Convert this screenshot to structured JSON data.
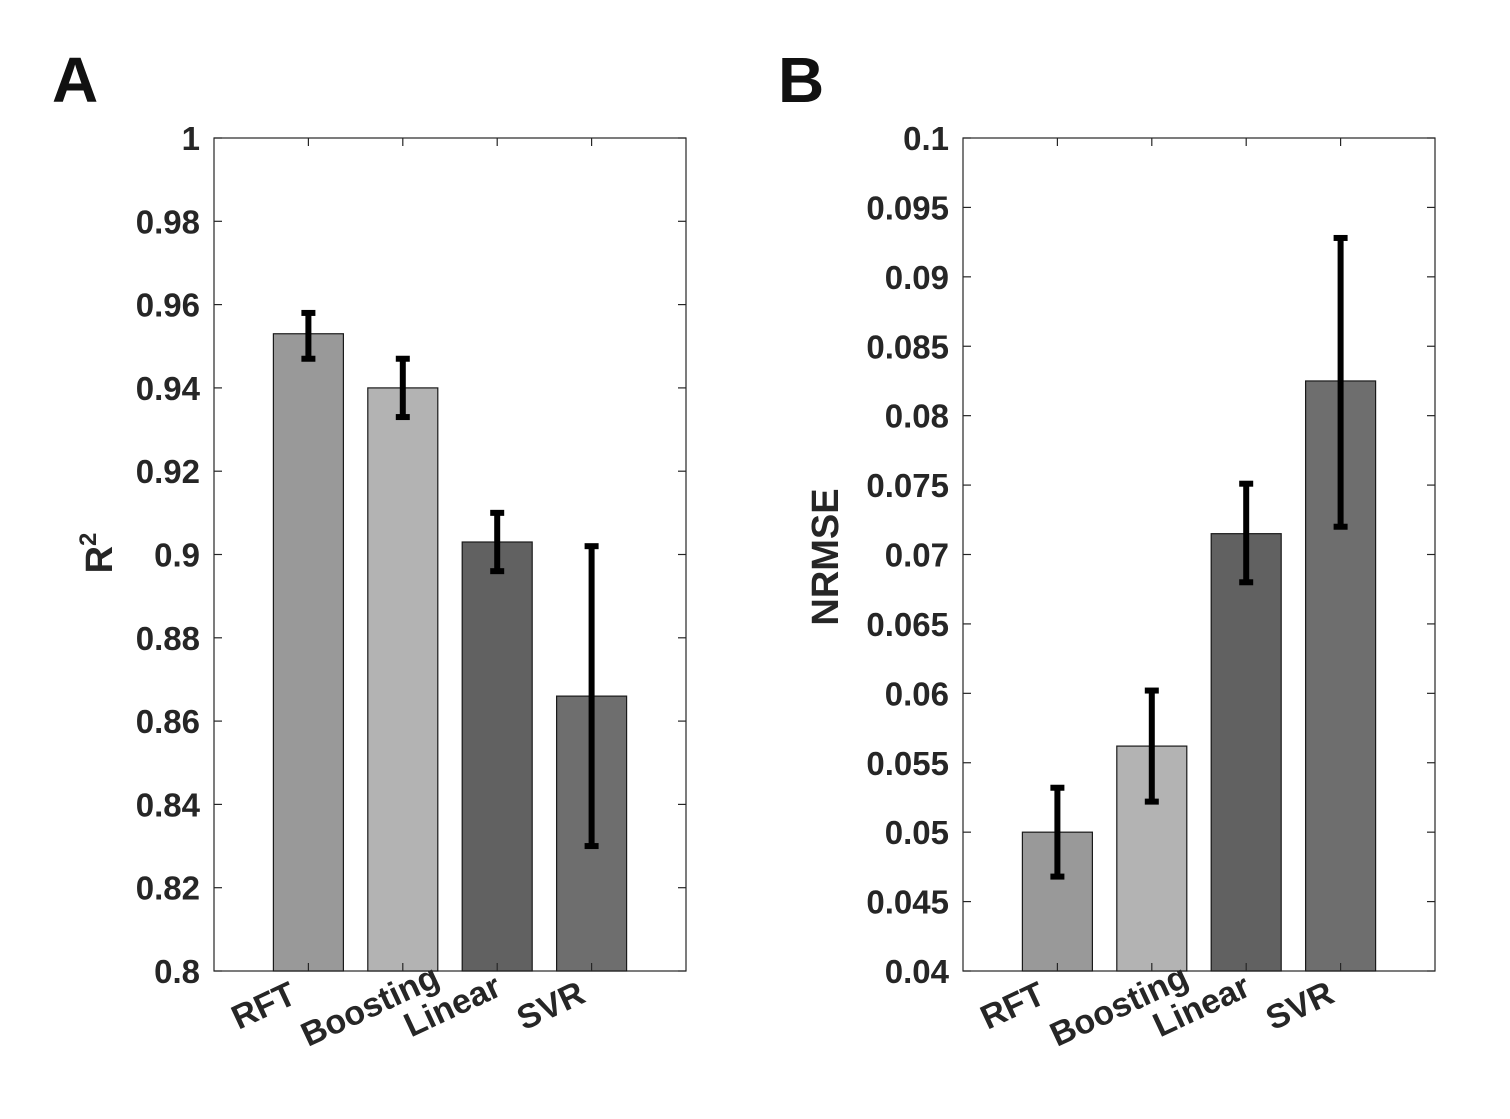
{
  "chart_data": [
    {
      "panel": "A",
      "type": "bar",
      "categories": [
        "RFT",
        "Boosting",
        "Linear",
        "SVR"
      ],
      "values": [
        0.953,
        0.94,
        0.903,
        0.866
      ],
      "error_low": [
        0.947,
        0.933,
        0.896,
        0.83
      ],
      "error_high": [
        0.958,
        0.947,
        0.91,
        0.902
      ],
      "bar_colors": [
        "#999999",
        "#b3b3b3",
        "#616161",
        "#6e6e6e"
      ],
      "ylabel": "R",
      "ylabel_sup": "2",
      "xlabel": "",
      "ylim": [
        0.8,
        1.0
      ],
      "ytick_step": 0.02,
      "ytick_labels": [
        "0.8",
        "0.82",
        "0.84",
        "0.86",
        "0.88",
        "0.9",
        "0.92",
        "0.94",
        "0.96",
        "0.98",
        "1"
      ],
      "grid": false
    },
    {
      "panel": "B",
      "type": "bar",
      "categories": [
        "RFT",
        "Boosting",
        "Linear",
        "SVR"
      ],
      "values": [
        0.05,
        0.0562,
        0.0715,
        0.0825
      ],
      "error_low": [
        0.0468,
        0.0522,
        0.068,
        0.072
      ],
      "error_high": [
        0.0532,
        0.0602,
        0.0751,
        0.0928
      ],
      "bar_colors": [
        "#999999",
        "#b3b3b3",
        "#616161",
        "#6e6e6e"
      ],
      "ylabel": "NRMSE",
      "ylabel_sup": "",
      "xlabel": "",
      "ylim": [
        0.04,
        0.1
      ],
      "ytick_step": 0.005,
      "ytick_labels": [
        "0.04",
        "0.045",
        "0.05",
        "0.055",
        "0.06",
        "0.065",
        "0.07",
        "0.075",
        "0.08",
        "0.085",
        "0.09",
        "0.095",
        "0.1"
      ],
      "grid": false
    }
  ]
}
